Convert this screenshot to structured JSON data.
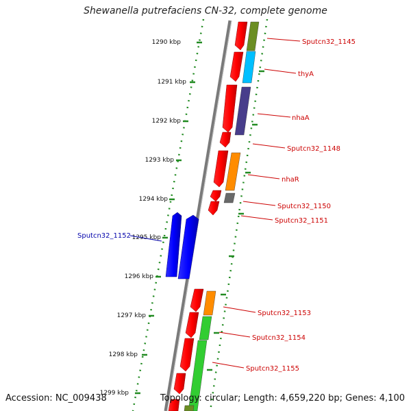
{
  "header": {
    "title": "Shewanella putrefaciens CN-32, complete genome"
  },
  "footer": {
    "accession": "Accession: NC_009438",
    "summary": "Topology: circular; Length: 4,659,220 bp; Genes: 4,100"
  },
  "scale_ticks": [
    "1290 kbp",
    "1291 kbp",
    "1292 kbp",
    "1293 kbp",
    "1294 kbp",
    "1295 kbp",
    "1296 kbp",
    "1297 kbp",
    "1298 kbp",
    "1299 kbp"
  ],
  "gene_labels": [
    {
      "text": "Sputcn32_1145",
      "color": "#cc0000"
    },
    {
      "text": "thyA",
      "color": "#cc0000"
    },
    {
      "text": "nhaA",
      "color": "#cc0000"
    },
    {
      "text": "Sputcn32_1148",
      "color": "#cc0000"
    },
    {
      "text": "nhaR",
      "color": "#cc0000"
    },
    {
      "text": "Sputcn32_1150",
      "color": "#cc0000"
    },
    {
      "text": "Sputcn32_1151",
      "color": "#cc0000"
    },
    {
      "text": "Sputcn32_1152",
      "color": "#0000aa"
    },
    {
      "text": "Sputcn32_1153",
      "color": "#cc0000"
    },
    {
      "text": "Sputcn32_1154",
      "color": "#cc0000"
    },
    {
      "text": "Sputcn32_1155",
      "color": "#cc0000"
    }
  ],
  "colors": {
    "cds": "#ff0000",
    "reverse_cds": "#0000ff",
    "backbone": "#8c8c8c",
    "ticks": "#228b22",
    "cog_olive": "#6b8e23",
    "cog_cyan": "#00bfff",
    "cog_slate": "#483d8b",
    "cog_orange": "#ff8c00",
    "cog_gray": "#696969",
    "cog_green": "#32cd32"
  }
}
